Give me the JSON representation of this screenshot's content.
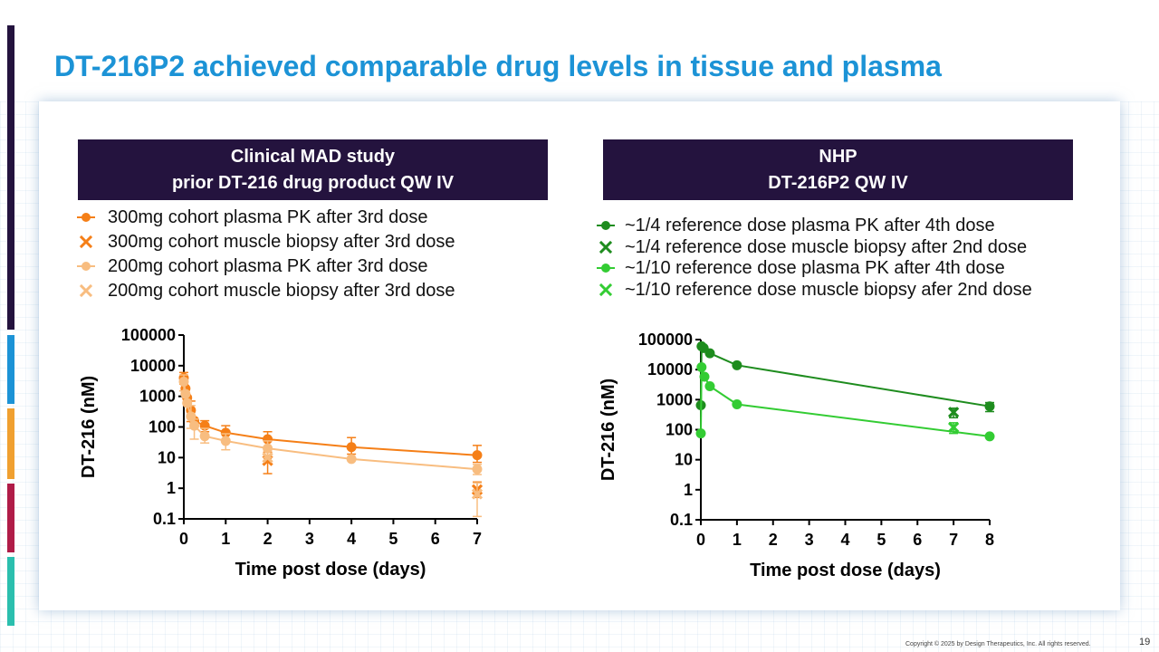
{
  "slide": {
    "title": "DT-216P2 achieved comparable drug levels in tissue and plasma",
    "copyright": "Copyright © 2025 by Design Therapeutics, Inc. All rights reserved.",
    "page_number": "19"
  },
  "accent_colors": [
    "#24133e",
    "#1c93d6",
    "#f0a030",
    "#b01c48",
    "#2bbfae"
  ],
  "left_panel": {
    "header_line1": "Clinical MAD study",
    "header_line2": "prior DT-216 drug product QW IV",
    "legend": [
      "300mg cohort plasma PK after 3rd dose",
      "300mg cohort muscle biopsy after 3rd dose",
      "200mg cohort plasma PK after 3rd dose",
      "200mg cohort muscle biopsy after 3rd dose"
    ]
  },
  "right_panel": {
    "header_line1": "NHP",
    "header_line2": "DT-216P2 QW IV",
    "legend": [
      "~1/4 reference dose plasma PK after 4th dose",
      "~1/4 reference dose muscle biopsy after 2nd dose",
      "~1/10 reference dose plasma PK after 4th dose",
      "~1/10 reference dose muscle biopsy afer 2nd dose"
    ]
  },
  "chart_data": [
    {
      "type": "scatter",
      "title": "Clinical MAD study",
      "xlabel": "Time post dose (days)",
      "ylabel": "DT-216 (nM)",
      "yscale": "log",
      "xlim": [
        0,
        7
      ],
      "ylim": [
        0.1,
        100000
      ],
      "xticks": [
        0,
        1,
        2,
        3,
        4,
        5,
        6,
        7
      ],
      "yticks": [
        0.1,
        1,
        10,
        100,
        1000,
        10000,
        100000
      ],
      "ytick_labels": [
        "0.1",
        "1",
        "10",
        "100",
        "1000",
        "10000",
        "100000"
      ],
      "series": [
        {
          "name": "300mg cohort plasma PK after 3rd dose",
          "color": "#f57f17",
          "marker": "circle",
          "line": true,
          "points": [
            {
              "x": 0,
              "y": 4000,
              "err": [
                2500,
                6000
              ]
            },
            {
              "x": 0.04,
              "y": 1800
            },
            {
              "x": 0.08,
              "y": 900
            },
            {
              "x": 0.17,
              "y": 350,
              "err": [
                150,
                700
              ]
            },
            {
              "x": 0.25,
              "y": 160
            },
            {
              "x": 0.5,
              "y": 110,
              "err": [
                70,
                160
              ]
            },
            {
              "x": 1,
              "y": 65,
              "err": [
                35,
                110
              ]
            },
            {
              "x": 2,
              "y": 40,
              "err": [
                20,
                70
              ]
            },
            {
              "x": 4,
              "y": 22,
              "err": [
                13,
                45
              ]
            },
            {
              "x": 7,
              "y": 12,
              "err": [
                7,
                25
              ]
            }
          ]
        },
        {
          "name": "300mg cohort muscle biopsy after 3rd dose",
          "color": "#f57f17",
          "marker": "x",
          "line": false,
          "points": [
            {
              "x": 2,
              "y": 8,
              "err": [
                3,
                15
              ]
            },
            {
              "x": 7,
              "y": 0.9,
              "err": [
                0.5,
                1.6
              ]
            }
          ]
        },
        {
          "name": "200mg cohort plasma PK after 3rd dose",
          "color": "#f8bd80",
          "marker": "circle",
          "line": true,
          "points": [
            {
              "x": 0,
              "y": 3000,
              "err": [
                1500,
                5000
              ]
            },
            {
              "x": 0.04,
              "y": 1200
            },
            {
              "x": 0.08,
              "y": 600
            },
            {
              "x": 0.17,
              "y": 220,
              "err": [
                90,
                500
              ]
            },
            {
              "x": 0.25,
              "y": 110,
              "err": [
                40,
                180
              ]
            },
            {
              "x": 0.5,
              "y": 50,
              "err": [
                30,
                90
              ]
            },
            {
              "x": 1,
              "y": 35,
              "err": [
                18,
                60
              ]
            },
            {
              "x": 2,
              "y": 20,
              "err": [
                10,
                35
              ]
            },
            {
              "x": 4,
              "y": 9
            },
            {
              "x": 7,
              "y": 4.2,
              "err": [
                2.8,
                6
              ]
            }
          ]
        },
        {
          "name": "200mg cohort muscle biopsy after 3rd dose",
          "color": "#f8bd80",
          "marker": "x",
          "line": false,
          "points": [
            {
              "x": 2,
              "y": 10
            },
            {
              "x": 7,
              "y": 0.65,
              "err": [
                0.12,
                1.5
              ]
            }
          ]
        }
      ]
    },
    {
      "type": "scatter",
      "title": "NHP",
      "xlabel": "Time post dose (days)",
      "ylabel": "DT-216 (nM)",
      "yscale": "log",
      "xlim": [
        0,
        8
      ],
      "ylim": [
        0.1,
        100000
      ],
      "xticks": [
        0,
        1,
        2,
        3,
        4,
        5,
        6,
        7,
        8
      ],
      "yticks": [
        0.1,
        1,
        10,
        100,
        1000,
        10000,
        100000
      ],
      "ytick_labels": [
        "0.1",
        "1",
        "10",
        "100",
        "1000",
        "10000",
        "100000"
      ],
      "series": [
        {
          "name": "~1/4 reference dose plasma PK after 4th dose",
          "color": "#1e8c1e",
          "marker": "circle",
          "line": true,
          "points": [
            {
              "x": 0,
              "y": 650
            },
            {
              "x": 0.02,
              "y": 60000
            },
            {
              "x": 0.08,
              "y": 52000
            },
            {
              "x": 0.25,
              "y": 35000
            },
            {
              "x": 1,
              "y": 14000
            },
            {
              "x": 8,
              "y": 600,
              "err": [
                400,
                800
              ]
            }
          ]
        },
        {
          "name": "~1/4 reference dose muscle biopsy after 2nd dose",
          "color": "#1e8c1e",
          "marker": "x",
          "line": false,
          "points": [
            {
              "x": 7,
              "y": 380,
              "err": [
                250,
                520
              ]
            }
          ]
        },
        {
          "name": "~1/10 reference dose plasma PK after 4th dose",
          "color": "#33cc33",
          "marker": "circle",
          "line": true,
          "points": [
            {
              "x": 0,
              "y": 75
            },
            {
              "x": 0.02,
              "y": 12000
            },
            {
              "x": 0.1,
              "y": 5800
            },
            {
              "x": 0.25,
              "y": 2800
            },
            {
              "x": 1,
              "y": 700
            },
            {
              "x": 8,
              "y": 60
            }
          ]
        },
        {
          "name": "~1/10 reference dose muscle biopsy afer 2nd dose",
          "color": "#33cc33",
          "marker": "x",
          "line": false,
          "points": [
            {
              "x": 7,
              "y": 120,
              "err": [
                75,
                170
              ]
            }
          ]
        }
      ]
    }
  ]
}
